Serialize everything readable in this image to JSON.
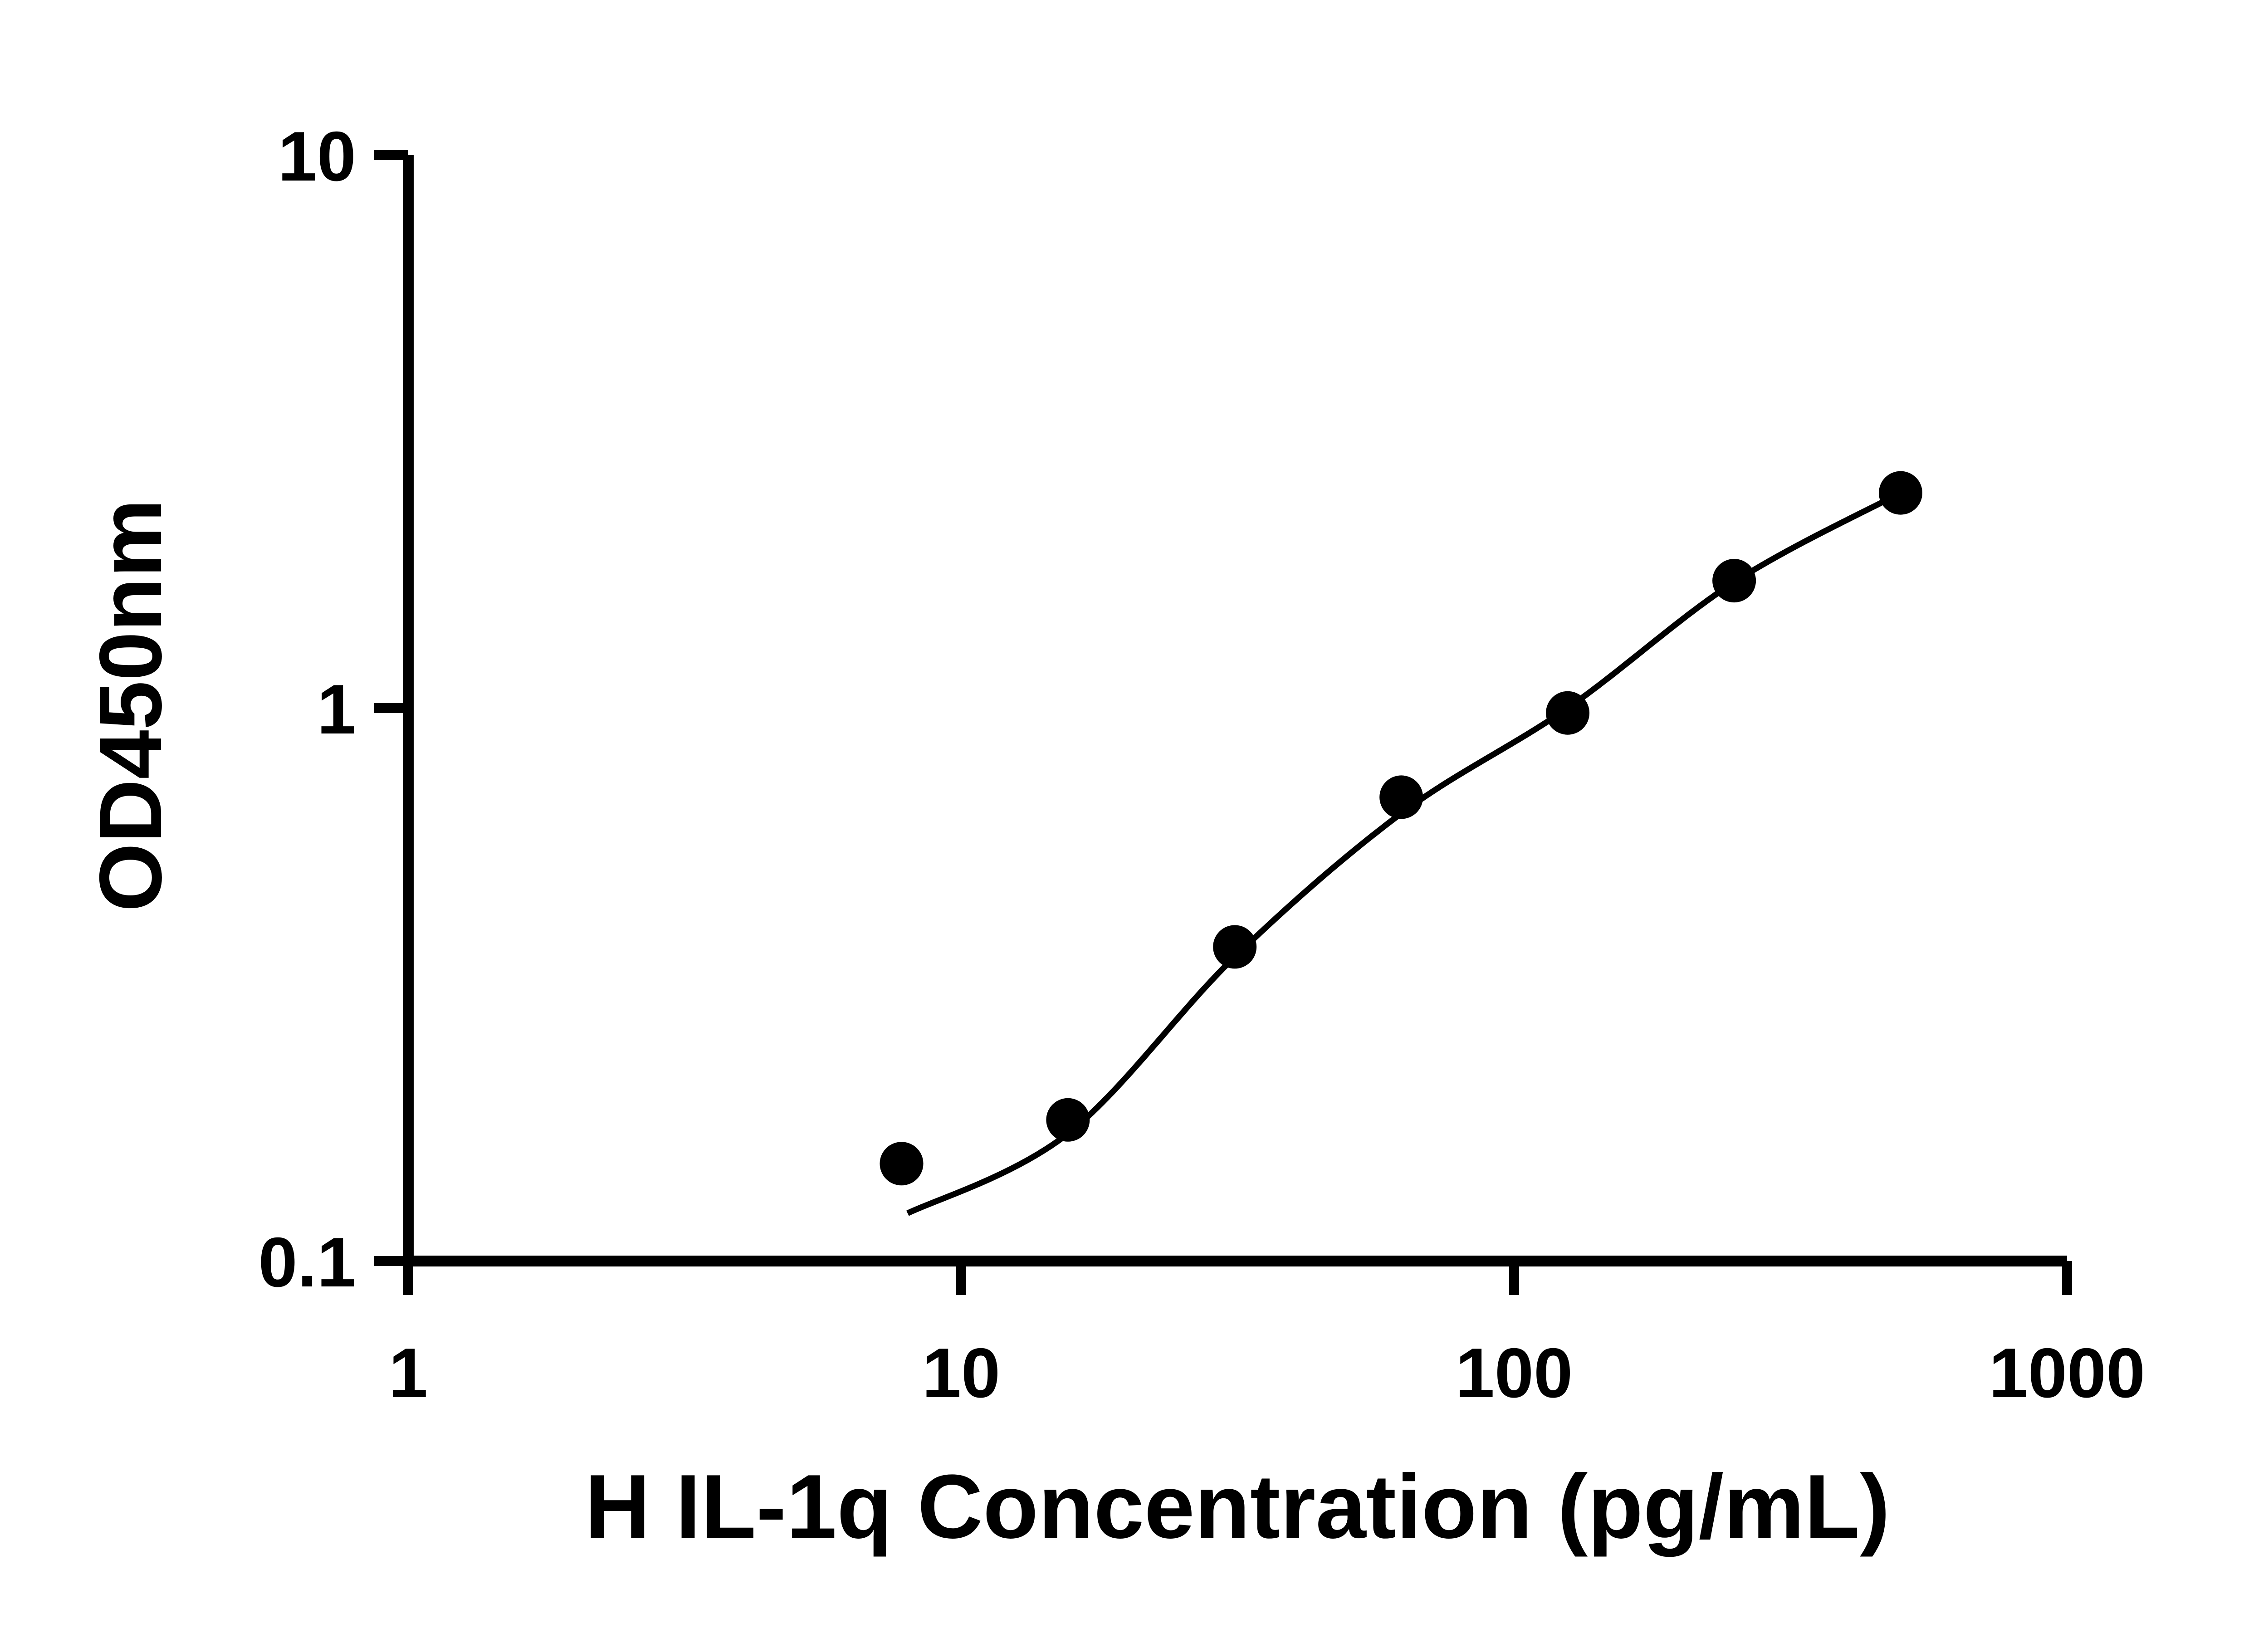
{
  "chart_data": {
    "type": "scatter",
    "title": "",
    "xlabel": "H IL-1q Concentration (pg/mL)",
    "ylabel": "OD450nm",
    "x_scale": "log",
    "y_scale": "log",
    "xlim": [
      1,
      1000
    ],
    "ylim": [
      0.1,
      10
    ],
    "x_ticks": [
      1,
      10,
      100,
      1000
    ],
    "x_tick_labels": [
      "1",
      "10",
      "100",
      "1000"
    ],
    "y_ticks": [
      0.1,
      1,
      10
    ],
    "y_tick_labels": [
      "0.1",
      "1",
      "10"
    ],
    "grid": false,
    "legend": false,
    "colors": {
      "axis": "#000000",
      "points": "#000000",
      "curve": "#000000",
      "background": "#ffffff"
    },
    "series": [
      {
        "name": "standard-curve-points",
        "x": [
          7.8,
          15.6,
          31.25,
          62.5,
          125,
          250,
          500
        ],
        "y": [
          0.15,
          0.18,
          0.37,
          0.69,
          0.98,
          1.7,
          2.45
        ]
      }
    ],
    "fit_curve": {
      "name": "4pl-fit-line",
      "x": [
        8,
        15.6,
        31.25,
        62.5,
        125,
        250,
        500
      ],
      "y": [
        0.122,
        0.17,
        0.355,
        0.645,
        1.0,
        1.69,
        2.45
      ]
    }
  }
}
